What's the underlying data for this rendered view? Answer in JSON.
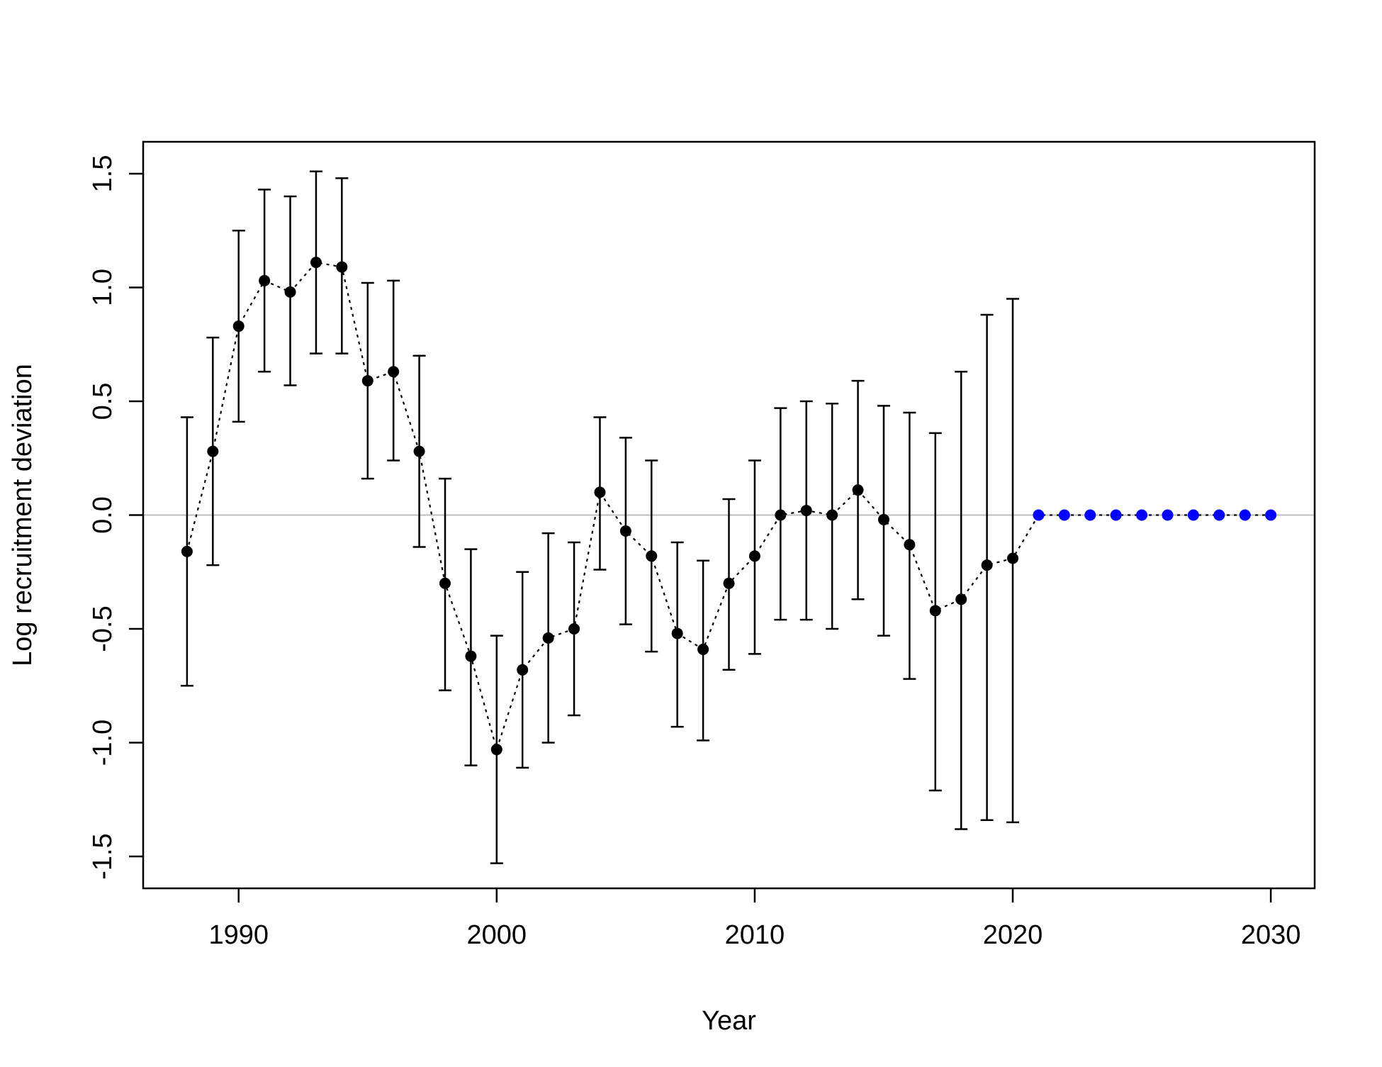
{
  "chart_data": {
    "type": "scatter",
    "title": "",
    "xlabel": "Year",
    "ylabel": "Log recruitment deviation",
    "xlim": [
      1986.3,
      2031.7
    ],
    "ylim": [
      -1.64,
      1.64
    ],
    "x_ticks": [
      "1990",
      "2000",
      "2010",
      "2020",
      "2030"
    ],
    "y_ticks": [
      "-1.5",
      "-1.0",
      "-0.5",
      "0.0",
      "0.5",
      "1.0",
      "1.5"
    ],
    "reference_line": {
      "y": 0,
      "color": "#bebebe"
    },
    "grid": false,
    "legend": "none",
    "series": [
      {
        "kind": "estimated",
        "color": "#000000",
        "x": [
          1988,
          1989,
          1990,
          1991,
          1992,
          1993,
          1994,
          1995,
          1996,
          1997,
          1998,
          1999,
          2000,
          2001,
          2002,
          2003,
          2004,
          2005,
          2006,
          2007,
          2008,
          2009,
          2010,
          2011,
          2012,
          2013,
          2014,
          2015,
          2016,
          2017,
          2018,
          2019,
          2020
        ],
        "y": [
          -0.16,
          0.28,
          0.83,
          1.03,
          0.98,
          1.11,
          1.09,
          0.59,
          0.63,
          0.28,
          -0.3,
          -0.62,
          -1.03,
          -0.68,
          -0.54,
          -0.5,
          0.1,
          -0.07,
          -0.18,
          -0.52,
          -0.59,
          -0.3,
          -0.18,
          0.0,
          0.02,
          0.0,
          0.11,
          -0.02,
          -0.13,
          -0.42,
          -0.37,
          -0.22,
          -0.19
        ],
        "lower": [
          -0.75,
          -0.22,
          0.41,
          0.63,
          0.57,
          0.71,
          0.71,
          0.16,
          0.24,
          -0.14,
          -0.77,
          -1.1,
          -1.53,
          -1.11,
          -1.0,
          -0.88,
          -0.24,
          -0.48,
          -0.6,
          -0.93,
          -0.99,
          -0.68,
          -0.61,
          -0.46,
          -0.46,
          -0.5,
          -0.37,
          -0.53,
          -0.72,
          -1.21,
          -1.38,
          -1.34,
          -1.35
        ],
        "upper": [
          0.43,
          0.78,
          1.25,
          1.43,
          1.4,
          1.51,
          1.48,
          1.02,
          1.03,
          0.7,
          0.16,
          -0.15,
          -0.53,
          -0.25,
          -0.08,
          -0.12,
          0.43,
          0.34,
          0.24,
          -0.12,
          -0.2,
          0.07,
          0.24,
          0.47,
          0.5,
          0.49,
          0.59,
          0.48,
          0.45,
          0.36,
          0.63,
          0.88,
          0.95
        ]
      },
      {
        "kind": "forecast",
        "color": "#0000ff",
        "x": [
          2021,
          2022,
          2023,
          2024,
          2025,
          2026,
          2027,
          2028,
          2029,
          2030
        ],
        "y": [
          0,
          0,
          0,
          0,
          0,
          0,
          0,
          0,
          0,
          0
        ]
      }
    ]
  }
}
